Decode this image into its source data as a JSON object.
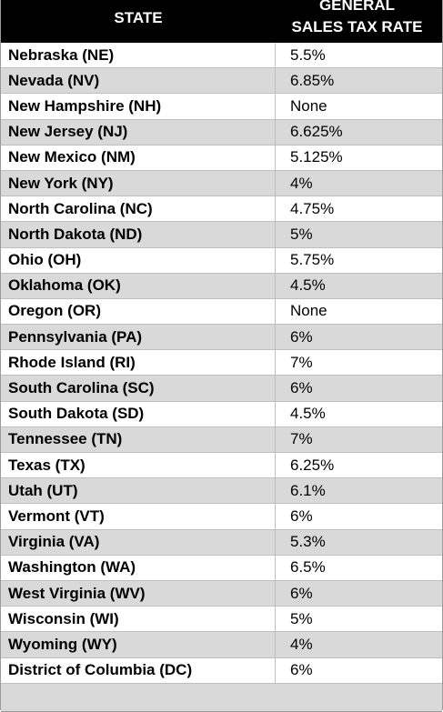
{
  "table": {
    "header": {
      "state": "STATE",
      "rate_line1": "GENERAL",
      "rate_line2": "SALES TAX RATE"
    },
    "rows": [
      {
        "state": "Nebraska (NE)",
        "rate": "5.5%"
      },
      {
        "state": "Nevada (NV)",
        "rate": "6.85%"
      },
      {
        "state": "New Hampshire (NH)",
        "rate": "None"
      },
      {
        "state": "New Jersey (NJ)",
        "rate": "6.625%"
      },
      {
        "state": "New Mexico (NM)",
        "rate": "5.125%"
      },
      {
        "state": "New York (NY)",
        "rate": "4%"
      },
      {
        "state": "North Carolina (NC)",
        "rate": "4.75%"
      },
      {
        "state": "North Dakota (ND)",
        "rate": "5%"
      },
      {
        "state": "Ohio (OH)",
        "rate": "5.75%"
      },
      {
        "state": "Oklahoma (OK)",
        "rate": "4.5%"
      },
      {
        "state": "Oregon (OR)",
        "rate": "None"
      },
      {
        "state": "Pennsylvania (PA)",
        "rate": "6%"
      },
      {
        "state": "Rhode Island (RI)",
        "rate": "7%"
      },
      {
        "state": "South Carolina (SC)",
        "rate": "6%"
      },
      {
        "state": "South Dakota (SD)",
        "rate": "4.5%"
      },
      {
        "state": "Tennessee (TN)",
        "rate": "7%"
      },
      {
        "state": "Texas (TX)",
        "rate": "6.25%"
      },
      {
        "state": "Utah (UT)",
        "rate": "6.1%"
      },
      {
        "state": "Vermont (VT)",
        "rate": "6%"
      },
      {
        "state": "Virginia (VA)",
        "rate": "5.3%"
      },
      {
        "state": "Washington (WA)",
        "rate": "6.5%"
      },
      {
        "state": "West Virginia (WV)",
        "rate": "6%"
      },
      {
        "state": "Wisconsin (WI)",
        "rate": "5%"
      },
      {
        "state": "Wyoming (WY)",
        "rate": "4%"
      },
      {
        "state": "District of Columbia (DC)",
        "rate": "6%"
      }
    ]
  }
}
